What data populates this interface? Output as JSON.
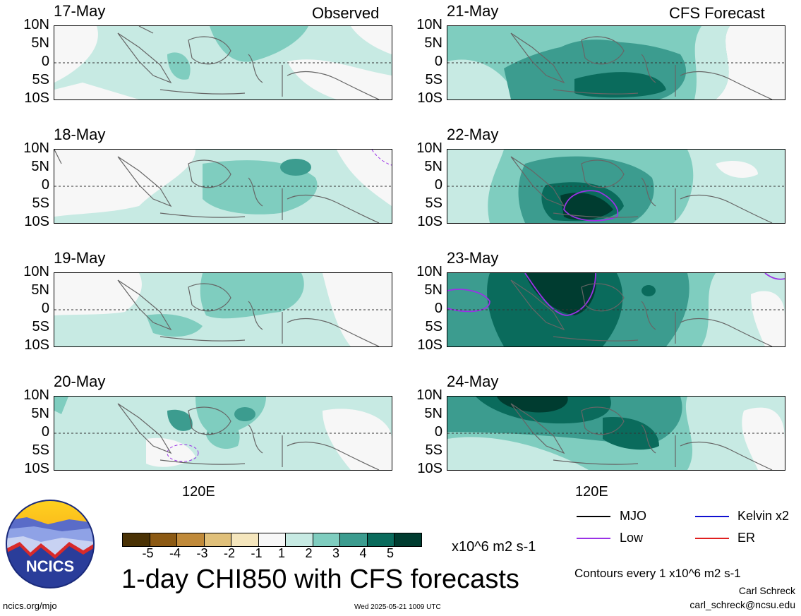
{
  "headers": {
    "left": "Observed",
    "right": "CFS Forecast"
  },
  "lat_labels": [
    "10N",
    "5N",
    "0",
    "5S",
    "10S"
  ],
  "lon_label": "120E",
  "panels": {
    "left": [
      "17-May",
      "18-May",
      "19-May",
      "20-May"
    ],
    "right": [
      "21-May",
      "22-May",
      "23-May",
      "24-May"
    ]
  },
  "colorbar": {
    "ticks": [
      "-5",
      "-4",
      "-3",
      "-2",
      "-1",
      "1",
      "2",
      "3",
      "4",
      "5"
    ],
    "colors": [
      "#4a3205",
      "#8c5a14",
      "#c08a3a",
      "#e0c07a",
      "#f5e6bd",
      "#f7f7f7",
      "#c7eae3",
      "#7fcdbf",
      "#3c9c8f",
      "#0a6b5c",
      "#003c30"
    ],
    "units": "x10^6 m2 s-1"
  },
  "title": "1-day CHI850 with CFS forecasts",
  "legend": [
    {
      "label": "MJO",
      "color": "#000000"
    },
    {
      "label": "Kelvin x2",
      "color": "#1010d0"
    },
    {
      "label": "Low",
      "color": "#9a32e6"
    },
    {
      "label": "ER",
      "color": "#e02020"
    }
  ],
  "contours_note": "Contours every 1 x10^6 m2 s-1",
  "author": "Carl Schreck",
  "email": "carl_schreck@ncsu.edu",
  "url": "ncics.org/mjo",
  "timestamp": "Wed 2025-05-21 1009 UTC",
  "logo_text": "NCICS"
}
